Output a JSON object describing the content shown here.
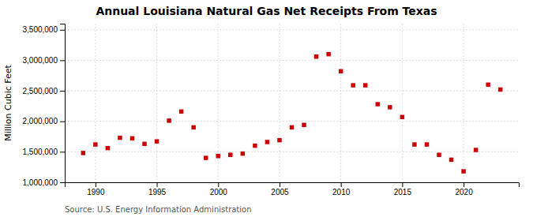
{
  "chart_data": {
    "type": "scatter",
    "title": "Annual Louisiana Natural Gas Net Receipts From Texas",
    "y_label": "Million Cubic Feet",
    "source": "Source: U.S. Energy Information Administration",
    "color": "#cc0000",
    "marker": "square",
    "grid": true,
    "xlim": [
      1987.5,
      2024.5
    ],
    "xticks": [
      1990,
      1995,
      2000,
      2005,
      2010,
      2015,
      2020
    ],
    "ylim": [
      1000000,
      3600000
    ],
    "yticks": [
      {
        "value": 1000000,
        "label": "1,000,000"
      },
      {
        "value": 1500000,
        "label": "1,500,000"
      },
      {
        "value": 2000000,
        "label": "2,000,000"
      },
      {
        "value": 2500000,
        "label": "2,500,000"
      },
      {
        "value": 3000000,
        "label": "3,000,000"
      },
      {
        "value": 3500000,
        "label": "3,500,000"
      }
    ],
    "x": [
      1989,
      1990,
      1991,
      1992,
      1993,
      1994,
      1995,
      1996,
      1997,
      1998,
      1999,
      2000,
      2001,
      2002,
      2003,
      2004,
      2005,
      2006,
      2007,
      2008,
      2009,
      2010,
      2011,
      2012,
      2013,
      2014,
      2015,
      2016,
      2017,
      2018,
      2019,
      2020,
      2021,
      2022,
      2023
    ],
    "values": [
      1480000,
      1620000,
      1560000,
      1730000,
      1720000,
      1630000,
      1670000,
      2010000,
      2160000,
      1900000,
      1400000,
      1430000,
      1450000,
      1470000,
      1600000,
      1660000,
      1690000,
      1900000,
      1940000,
      3060000,
      3100000,
      2820000,
      2590000,
      2590000,
      2280000,
      2230000,
      2070000,
      1620000,
      1620000,
      1450000,
      1370000,
      1180000,
      1530000,
      2600000,
      2520000
    ]
  }
}
